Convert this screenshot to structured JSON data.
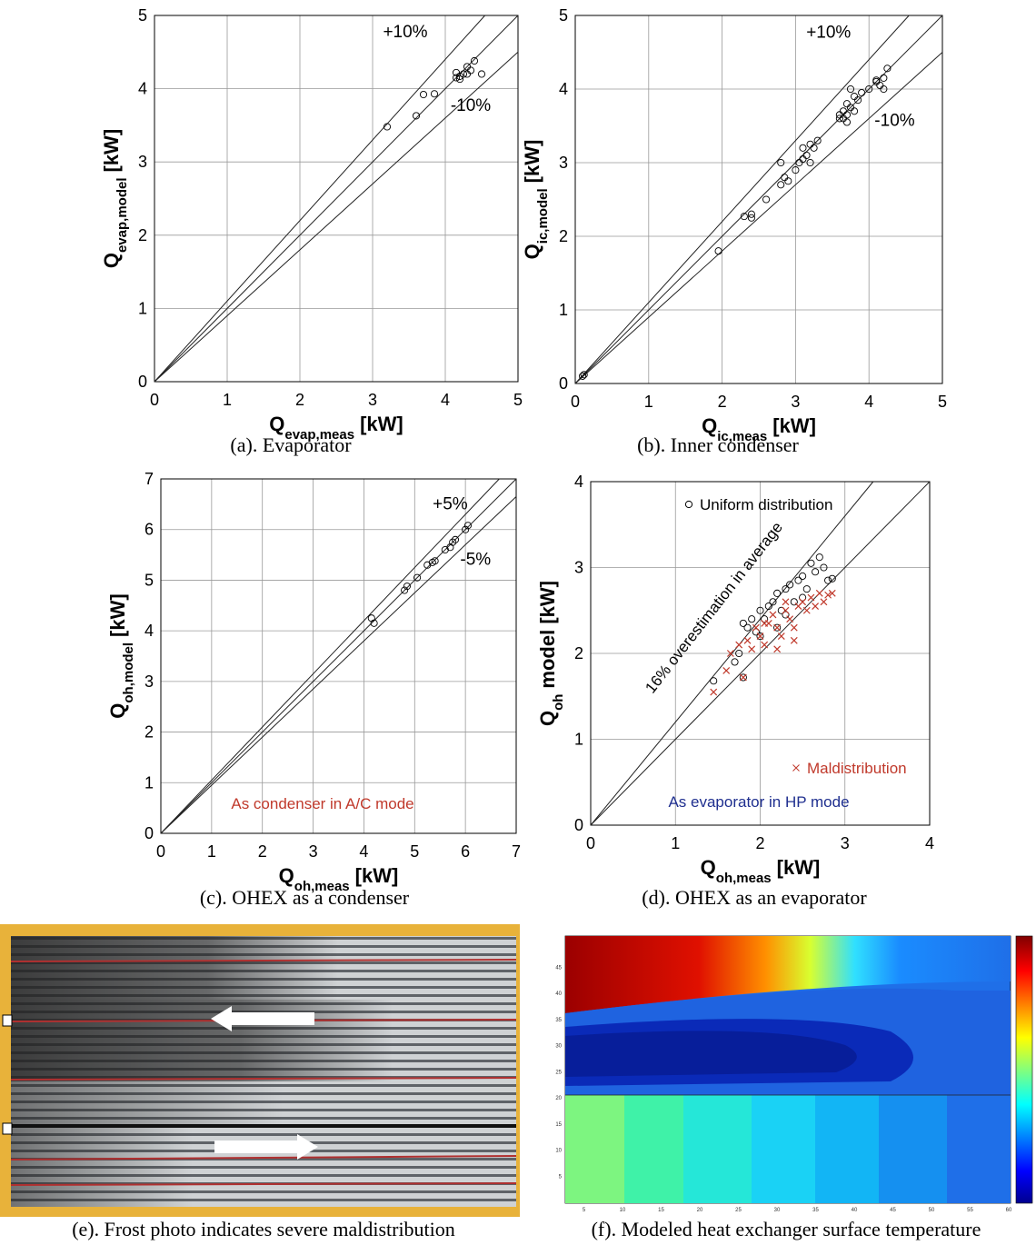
{
  "chart_data": [
    {
      "type": "scatter",
      "x_label": {
        "main": "Q",
        "sub": "evap,meas",
        "unit": "[kW]"
      },
      "y_label": {
        "main": "Q",
        "sub": "evap,model",
        "unit": "[kW]"
      },
      "xlim": [
        0,
        5
      ],
      "ylim": [
        0,
        5
      ],
      "xticks": [
        0,
        1,
        2,
        3,
        4,
        5
      ],
      "yticks": [
        0,
        1,
        2,
        3,
        4,
        5
      ],
      "grid": true,
      "reference_lines": [
        {
          "slope": 1.1,
          "label": "+10%"
        },
        {
          "slope": 1
        },
        {
          "slope": 0.9,
          "label": "-10%"
        }
      ],
      "series": [
        {
          "color": "#000000",
          "marker": "circle",
          "x": [
            3.2,
            3.6,
            3.7,
            3.85,
            4.15,
            4.15,
            4.2,
            4.25,
            4.3,
            4.35,
            4.4,
            4.5,
            4.3,
            4.2
          ],
          "values": [
            3.48,
            3.63,
            3.92,
            3.93,
            4.15,
            4.22,
            4.17,
            4.2,
            4.3,
            4.25,
            4.38,
            4.2,
            4.2,
            4.13
          ]
        }
      ]
    },
    {
      "type": "scatter",
      "x_label": {
        "main": "Q",
        "sub": "ic,meas",
        "unit": "[kW]"
      },
      "y_label": {
        "main": "Q",
        "sub": "ic,model",
        "unit": "[kW]"
      },
      "xlim": [
        0,
        5
      ],
      "ylim": [
        0,
        5
      ],
      "xticks": [
        0,
        1,
        2,
        3,
        4,
        5
      ],
      "yticks": [
        0,
        1,
        2,
        3,
        4,
        5
      ],
      "grid": true,
      "reference_lines": [
        {
          "slope": 1.1,
          "label": "+10%"
        },
        {
          "slope": 1
        },
        {
          "slope": 0.9,
          "label": "-10%"
        }
      ],
      "series": [
        {
          "color": "#000000",
          "marker": "circle",
          "x": [
            0.1,
            0.12,
            1.95,
            2.3,
            2.4,
            2.4,
            2.6,
            2.8,
            2.85,
            2.8,
            2.9,
            3.0,
            3.05,
            3.1,
            3.15,
            3.2,
            3.25,
            3.3,
            3.2,
            3.1,
            3.6,
            3.65,
            3.7,
            3.75,
            3.8,
            3.7,
            3.75,
            3.8,
            3.85,
            3.6,
            3.7,
            4.0,
            4.1,
            4.15,
            4.2,
            4.1,
            4.25,
            4.2,
            3.9,
            3.65
          ],
          "values": [
            0.1,
            0.12,
            1.8,
            2.27,
            2.3,
            2.25,
            2.5,
            2.7,
            2.8,
            3.0,
            2.75,
            2.9,
            3.0,
            3.2,
            3.1,
            3.0,
            3.2,
            3.3,
            3.25,
            3.05,
            3.6,
            3.7,
            3.8,
            3.75,
            3.9,
            3.65,
            4.0,
            3.7,
            3.85,
            3.65,
            3.55,
            4.0,
            4.1,
            4.05,
            4.0,
            4.12,
            4.28,
            4.15,
            3.95,
            3.6
          ]
        }
      ]
    },
    {
      "type": "scatter",
      "x_label": {
        "main": "Q",
        "sub": "oh,meas",
        "unit": "[kW]"
      },
      "y_label": {
        "main": "Q",
        "sub": "oh,model",
        "unit": "[kW]"
      },
      "xlim": [
        0,
        7
      ],
      "ylim": [
        0,
        7
      ],
      "xticks": [
        0,
        1,
        2,
        3,
        4,
        5,
        6,
        7
      ],
      "yticks": [
        0,
        1,
        2,
        3,
        4,
        5,
        6,
        7
      ],
      "grid": true,
      "reference_lines": [
        {
          "slope": 1.05,
          "label": "+5%"
        },
        {
          "slope": 1
        },
        {
          "slope": 0.95,
          "label": "-5%"
        }
      ],
      "annotations": [
        {
          "text": "As condenser in A/C mode",
          "color": "#c0392b"
        }
      ],
      "series": [
        {
          "color": "#000000",
          "marker": "circle",
          "x": [
            4.15,
            4.2,
            4.8,
            4.85,
            5.05,
            5.25,
            5.35,
            5.4,
            5.6,
            5.7,
            5.75,
            5.8,
            6.0,
            6.05
          ],
          "values": [
            4.25,
            4.15,
            4.8,
            4.88,
            5.05,
            5.3,
            5.35,
            5.38,
            5.6,
            5.65,
            5.75,
            5.8,
            6.0,
            6.08
          ]
        }
      ]
    },
    {
      "type": "scatter",
      "x_label": {
        "main": "Q",
        "sub": "oh,meas",
        "unit": "[kW]"
      },
      "y_label": {
        "main": "Q",
        "sub": "oh",
        "unit": "model [kW]"
      },
      "xlim": [
        0,
        4
      ],
      "ylim": [
        0,
        4
      ],
      "xticks": [
        0,
        1,
        2,
        3,
        4
      ],
      "yticks": [
        0,
        1,
        2,
        3,
        4
      ],
      "grid": true,
      "reference_lines": [
        {
          "slope": 1.2
        },
        {
          "slope": 1
        }
      ],
      "annotations": [
        {
          "text": "16% overestimation in average",
          "color": "#000000"
        },
        {
          "text": "As evaporator in HP mode",
          "color": "#1f2f8f"
        }
      ],
      "series": [
        {
          "name": "Uniform distribution",
          "color": "#000000",
          "marker": "circle",
          "x": [
            1.45,
            1.7,
            1.75,
            1.8,
            1.85,
            1.9,
            1.95,
            2.0,
            2.05,
            2.1,
            2.15,
            2.2,
            2.25,
            2.3,
            2.35,
            2.4,
            2.45,
            2.5,
            2.55,
            2.6,
            2.65,
            2.7,
            2.75,
            2.8,
            2.85,
            2.0,
            1.8,
            2.3,
            2.5,
            2.2
          ],
          "values": [
            1.68,
            1.9,
            2.0,
            2.35,
            2.3,
            2.4,
            2.25,
            2.5,
            2.4,
            2.55,
            2.6,
            2.7,
            2.5,
            2.75,
            2.8,
            2.6,
            2.85,
            2.9,
            2.75,
            3.05,
            2.95,
            3.12,
            3.0,
            2.85,
            2.87,
            2.2,
            1.72,
            2.45,
            2.65,
            2.3
          ]
        },
        {
          "name": "Maldistribution",
          "color": "#c0392b",
          "marker": "cross",
          "x": [
            1.45,
            1.6,
            1.65,
            1.75,
            1.85,
            1.9,
            1.95,
            2.0,
            2.05,
            2.1,
            2.15,
            2.2,
            2.25,
            2.3,
            2.35,
            2.4,
            2.45,
            2.5,
            2.55,
            2.6,
            2.65,
            2.7,
            2.75,
            2.8,
            2.85,
            2.2,
            2.4,
            2.05,
            1.8,
            2.3
          ],
          "values": [
            1.55,
            1.8,
            2.0,
            2.1,
            2.15,
            2.05,
            2.3,
            2.2,
            2.1,
            2.35,
            2.45,
            2.3,
            2.2,
            2.5,
            2.4,
            2.3,
            2.55,
            2.6,
            2.5,
            2.65,
            2.55,
            2.7,
            2.6,
            2.68,
            2.7,
            2.05,
            2.15,
            2.35,
            1.72,
            2.6
          ]
        }
      ]
    }
  ],
  "captions": [
    "(a). Evaporator",
    "(b). Inner condenser",
    "(c). OHEX as a condenser",
    "(d). OHEX as an evaporator",
    "(e). Frost photo indicates severe maldistribution",
    "(f). Modeled heat exchanger surface temperature"
  ],
  "contour": {
    "xlim": [
      0,
      60
    ],
    "ylim": [
      0,
      48
    ],
    "xticks": [
      5,
      10,
      15,
      20,
      25,
      30,
      35,
      40,
      45,
      50,
      55,
      60
    ],
    "yticks": [
      5,
      10,
      15,
      20,
      25,
      30,
      35,
      40,
      45
    ]
  }
}
